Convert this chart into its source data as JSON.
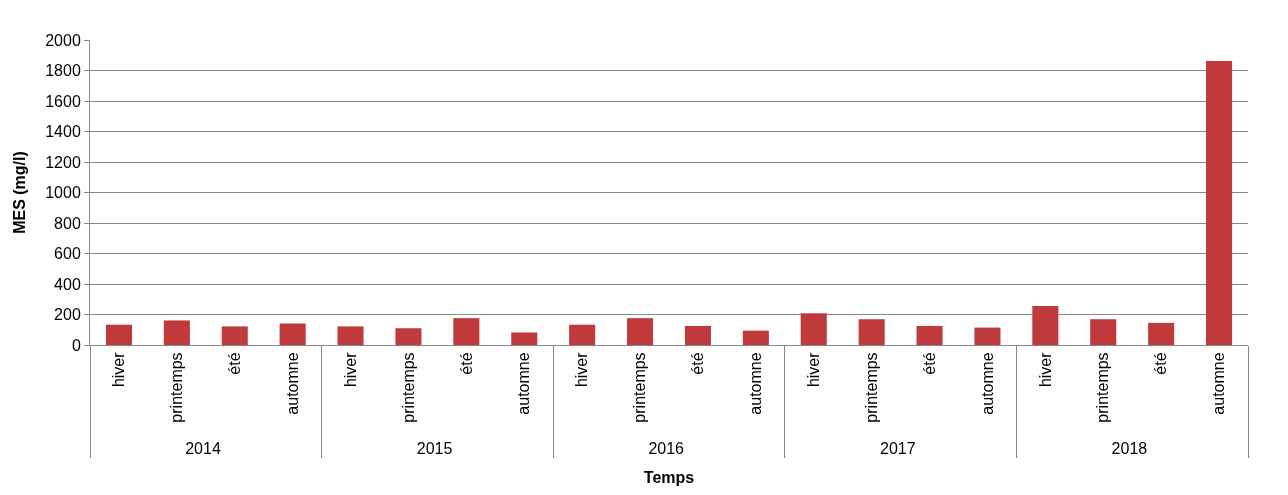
{
  "chart_data": {
    "type": "bar",
    "xlabel": "Temps",
    "ylabel": "MES (mg/l)",
    "categories": [
      "hiver",
      "printemps",
      "été",
      "automne",
      "hiver",
      "printemps",
      "été",
      "automne",
      "hiver",
      "printemps",
      "été",
      "automne",
      "hiver",
      "printemps",
      "été",
      "automne",
      "hiver",
      "printemps",
      "été",
      "automne"
    ],
    "annotations": [
      "2014",
      "2015",
      "2016",
      "2017",
      "2018"
    ],
    "values": [
      133,
      161,
      122,
      141,
      122,
      110,
      176,
      82,
      133,
      176,
      125,
      94,
      208,
      169,
      125,
      114,
      255,
      169,
      145,
      1863
    ],
    "color": "#c0393b",
    "ylim": [
      0,
      2000
    ],
    "yticks": [
      0,
      200,
      400,
      600,
      800,
      1000,
      1200,
      1400,
      1600,
      1800,
      2000
    ],
    "grid": "y",
    "legend": false
  }
}
